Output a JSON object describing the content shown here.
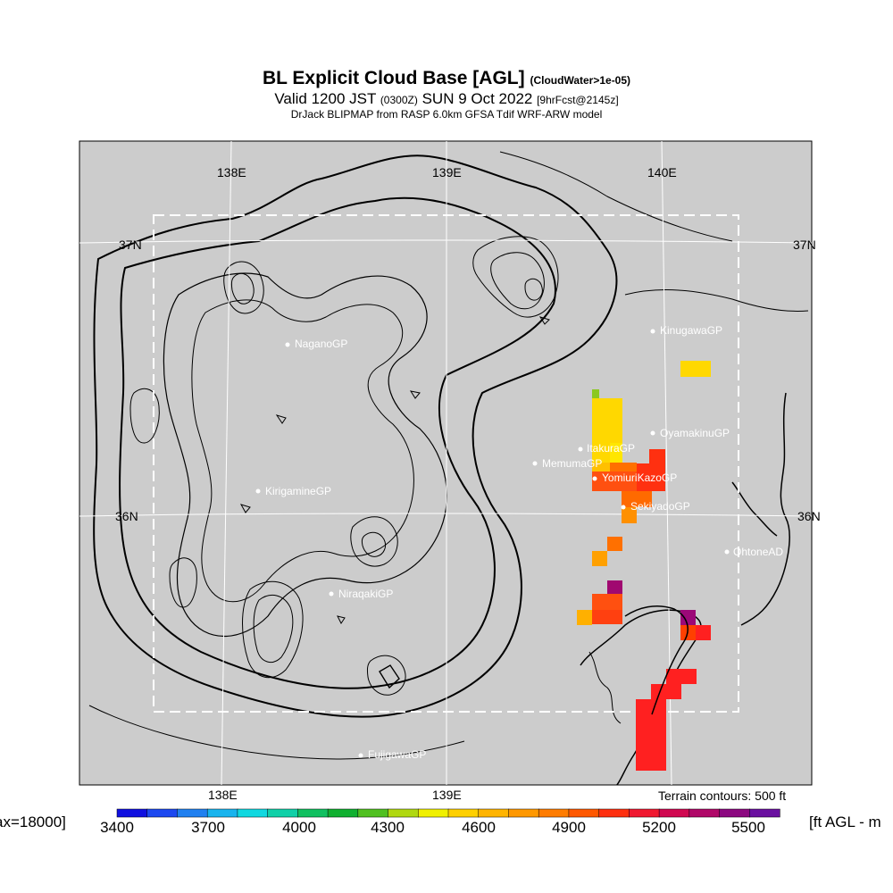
{
  "title": {
    "main": "BL Explicit Cloud Base [AGL]",
    "main_note": "(CloudWater>1e-05)",
    "valid": "Valid 1200 JST",
    "valid_utc": "(0300Z)",
    "valid_date": "SUN 9 Oct 2022",
    "forecast": "[9hrFcst@2145z]",
    "model": "DrJack BLIPMAP from RASP 6.0km GFSA Tdif WRF-ARW model"
  },
  "map": {
    "background_color": "#cccccc",
    "lon_labels_top": [
      "138E",
      "139E",
      "140E"
    ],
    "lon_labels_bottom": [
      "138E",
      "139E"
    ],
    "lat_labels": [
      "37N",
      "36N"
    ],
    "stations": [
      {
        "name": "KinugawaGP"
      },
      {
        "name": "NaganoGP"
      },
      {
        "name": "OyamakinuGP"
      },
      {
        "name": "ItakuraGP"
      },
      {
        "name": "MemumaGP"
      },
      {
        "name": "YomiuriKazoGP"
      },
      {
        "name": "KirigamineGP"
      },
      {
        "name": "SekiyadoGP"
      },
      {
        "name": "OhtoneAD"
      },
      {
        "name": "NiraqakiGP"
      },
      {
        "name": "FujigawaGP"
      }
    ]
  },
  "terrain_note": "Terrain contours: 500 ft",
  "colorbar": {
    "left_label": "ax=18000]",
    "right_label": "[ft AGL - m",
    "tick_labels": [
      "3400",
      "3700",
      "4000",
      "4300",
      "4600",
      "4900",
      "5200",
      "5500"
    ],
    "colors": [
      "#1010e0",
      "#1c48f0",
      "#2080f0",
      "#18b4ee",
      "#10d8e0",
      "#10d0a8",
      "#10c060",
      "#10b030",
      "#50c020",
      "#b0d810",
      "#f0f000",
      "#ffd000",
      "#ffb400",
      "#ff9800",
      "#ff7c00",
      "#ff5800",
      "#ff3010",
      "#f01830",
      "#d00850",
      "#b00868",
      "#8c0880",
      "#6a10a0"
    ]
  }
}
